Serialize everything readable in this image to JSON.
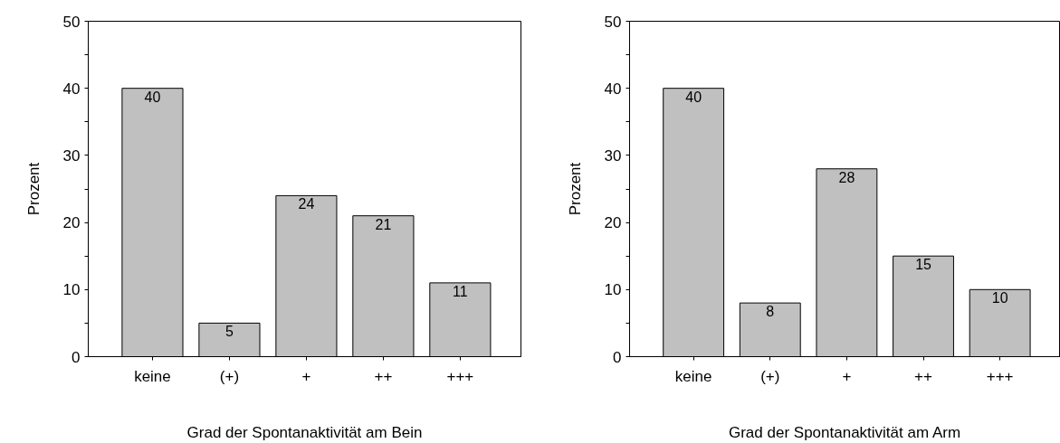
{
  "chart_data": [
    {
      "type": "bar",
      "categories": [
        "keine",
        "(+)",
        "+",
        "++",
        "+++"
      ],
      "values": [
        40,
        5,
        24,
        21,
        11
      ],
      "color": "#c0c0c0",
      "data_labels": true,
      "xlabel": "Grad der Spontanaktivität am Bein",
      "ylabel": "Prozent",
      "ylim": [
        0,
        50
      ],
      "yticks": [
        0,
        {
          "value": 5,
          "label": null
        },
        10,
        {
          "value": 15,
          "label": null
        },
        20,
        {
          "value": 25,
          "label": null
        },
        30,
        {
          "value": 35,
          "label": null
        },
        40,
        {
          "value": 45,
          "label": null
        },
        50
      ],
      "grid": false
    },
    {
      "type": "bar",
      "categories": [
        "keine",
        "(+)",
        "+",
        "++",
        "+++"
      ],
      "values": [
        40,
        8,
        28,
        15,
        10
      ],
      "color": "#c0c0c0",
      "data_labels": true,
      "xlabel": "Grad der Spontanaktivität am Arm",
      "ylabel": "Prozent",
      "ylim": [
        0,
        50
      ],
      "yticks": [
        0,
        {
          "value": 5,
          "label": null
        },
        10,
        {
          "value": 15,
          "label": null
        },
        20,
        {
          "value": 25,
          "label": null
        },
        30,
        {
          "value": 35,
          "label": null
        },
        40,
        {
          "value": 45,
          "label": null
        },
        50
      ],
      "grid": false
    }
  ]
}
